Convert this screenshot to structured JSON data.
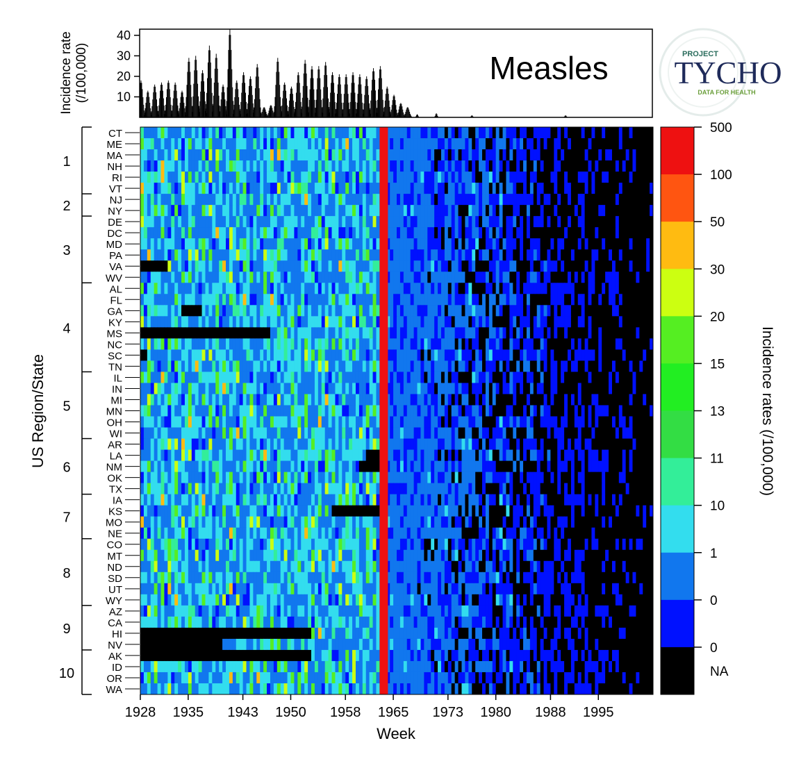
{
  "chart_data": [
    {
      "type": "bar",
      "ylabel": "Incidence rate (/100,000)",
      "ylabel_lines": [
        "Incidence rate",
        "(/100,000)"
      ],
      "ylim": [
        0,
        43
      ],
      "yticks": [
        10,
        20,
        30,
        40
      ],
      "annotation": "Measles",
      "x_range": [
        1928,
        2003
      ],
      "vaccine_year": 1963,
      "series": [
        {
          "peaks_x": [
            1928.1,
            1929.1,
            1930.1,
            1931.1,
            1932.1,
            1933.1,
            1934.1,
            1935.1,
            1936.1,
            1937.1,
            1938.1,
            1939.1,
            1940.1,
            1941.1,
            1942.1,
            1943.1,
            1944.1,
            1945.1,
            1946.1,
            1947.1,
            1948.1,
            1949.1,
            1950.1,
            1951.1,
            1952.1,
            1953.1,
            1954.1,
            1955.1,
            1956.1,
            1957.1,
            1958.1,
            1959.1,
            1960.1,
            1961.1,
            1962.1,
            1963.1,
            1964.1,
            1965.1,
            1966.1,
            1967.1,
            1968.5,
            1971.3,
            1976.5,
            1990.2
          ],
          "peaks_y": [
            18,
            13,
            16,
            17,
            18,
            17,
            13,
            29,
            30,
            23,
            35,
            31,
            16,
            43,
            18,
            22,
            20,
            26,
            5,
            6,
            29,
            17,
            15,
            22,
            28,
            25,
            25,
            27,
            22,
            21,
            21,
            22,
            21,
            20,
            24,
            25,
            15,
            11,
            7,
            5,
            1.5,
            2,
            1,
            1
          ]
        }
      ]
    },
    {
      "type": "heatmap",
      "xlabel": "Week",
      "ylabel": "US Region/State",
      "x_range": [
        1928,
        2003
      ],
      "xticks": [
        1928,
        1935,
        1943,
        1950,
        1958,
        1965,
        1973,
        1980,
        1988,
        1995
      ],
      "vaccine_year": 1963,
      "states": [
        "CT",
        "ME",
        "MA",
        "NH",
        "RI",
        "VT",
        "NJ",
        "NY",
        "DE",
        "DC",
        "MD",
        "PA",
        "VA",
        "WV",
        "AL",
        "FL",
        "GA",
        "KY",
        "MS",
        "NC",
        "SC",
        "TN",
        "IL",
        "IN",
        "MI",
        "MN",
        "OH",
        "WI",
        "AR",
        "LA",
        "NM",
        "OK",
        "TX",
        "IA",
        "KS",
        "MO",
        "NE",
        "CO",
        "MT",
        "ND",
        "SD",
        "UT",
        "WY",
        "AZ",
        "CA",
        "HI",
        "NV",
        "AK",
        "ID",
        "OR",
        "WA"
      ],
      "regions": [
        {
          "label": "1",
          "states": [
            "CT",
            "ME",
            "MA",
            "NH",
            "RI",
            "VT"
          ]
        },
        {
          "label": "2",
          "states": [
            "NJ",
            "NY"
          ]
        },
        {
          "label": "3",
          "states": [
            "DE",
            "DC",
            "MD",
            "PA",
            "VA",
            "WV"
          ]
        },
        {
          "label": "4",
          "states": [
            "AL",
            "FL",
            "GA",
            "KY",
            "MS",
            "NC",
            "SC",
            "TN"
          ]
        },
        {
          "label": "5",
          "states": [
            "IL",
            "IN",
            "MI",
            "MN",
            "OH",
            "WI"
          ]
        },
        {
          "label": "6",
          "states": [
            "AR",
            "LA",
            "NM",
            "OK",
            "TX"
          ]
        },
        {
          "label": "7",
          "states": [
            "IA",
            "KS",
            "MO",
            "NE"
          ]
        },
        {
          "label": "8",
          "states": [
            "CO",
            "MT",
            "ND",
            "SD",
            "UT",
            "WY"
          ]
        },
        {
          "label": "9",
          "states": [
            "AZ",
            "CA",
            "HI",
            "NV"
          ]
        },
        {
          "label": "10",
          "states": [
            "AK",
            "ID",
            "OR",
            "WA"
          ]
        }
      ],
      "missing_blocks": [
        {
          "state": "VA",
          "from": 1928,
          "to": 1932
        },
        {
          "state": "GA",
          "from": 1934,
          "to": 1937
        },
        {
          "state": "MS",
          "from": 1928,
          "to": 1947
        },
        {
          "state": "SC",
          "from": 1928,
          "to": 1929
        },
        {
          "state": "HI",
          "from": 1928,
          "to": 1953
        },
        {
          "state": "NV",
          "from": 1928,
          "to": 1940
        },
        {
          "state": "AK",
          "from": 1928,
          "to": 1953
        },
        {
          "state": "KS",
          "from": 1956,
          "to": 1963
        },
        {
          "state": "NM",
          "from": 1960,
          "to": 1963
        },
        {
          "state": "LA",
          "from": 1961,
          "to": 1963
        }
      ]
    }
  ],
  "colorbar": {
    "title": "Incidence rates (/100,000)",
    "labels": [
      "500",
      "100",
      "50",
      "30",
      "20",
      "15",
      "13",
      "11",
      "10",
      "1",
      "0",
      "0",
      "NA"
    ],
    "colors": [
      "#ee1111",
      "#ff5511",
      "#ffbb11",
      "#ccff11",
      "#55ee22",
      "#22ee22",
      "#33dd44",
      "#33ee99",
      "#33ddee",
      "#1177ee",
      "#0011ff",
      "#000000"
    ]
  },
  "logo": {
    "top": "PROJECT",
    "word": "TYCHO",
    "tagline": "DATA FOR HEALTH"
  }
}
